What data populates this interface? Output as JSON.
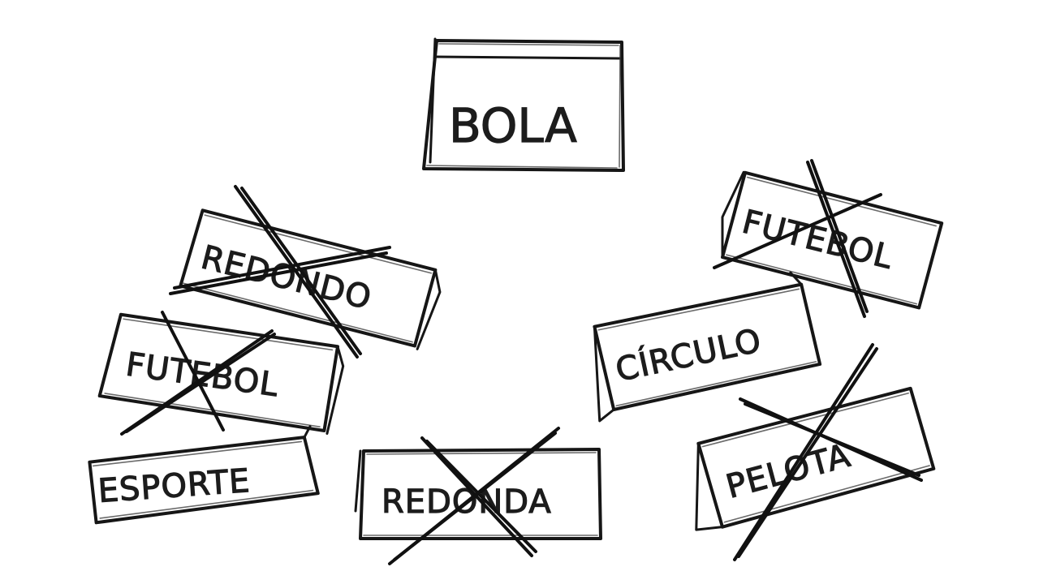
{
  "center_word": "BOLA",
  "cards": [
    {
      "id": "redondo",
      "label": "REDONDO",
      "crossed": true
    },
    {
      "id": "futebol-left",
      "label": "FUTEBOL",
      "crossed": true
    },
    {
      "id": "esporte",
      "label": "ESPORTE",
      "crossed": false
    },
    {
      "id": "redonda",
      "label": "REDONDA",
      "crossed": true
    },
    {
      "id": "futebol-right",
      "label": "FUTEBOL",
      "crossed": true
    },
    {
      "id": "circulo",
      "label": "CÍRCULO",
      "crossed": false
    },
    {
      "id": "pelota",
      "label": "PELOTA",
      "crossed": true
    }
  ],
  "colors": {
    "ink": "#161616",
    "paper": "#ffffff"
  }
}
